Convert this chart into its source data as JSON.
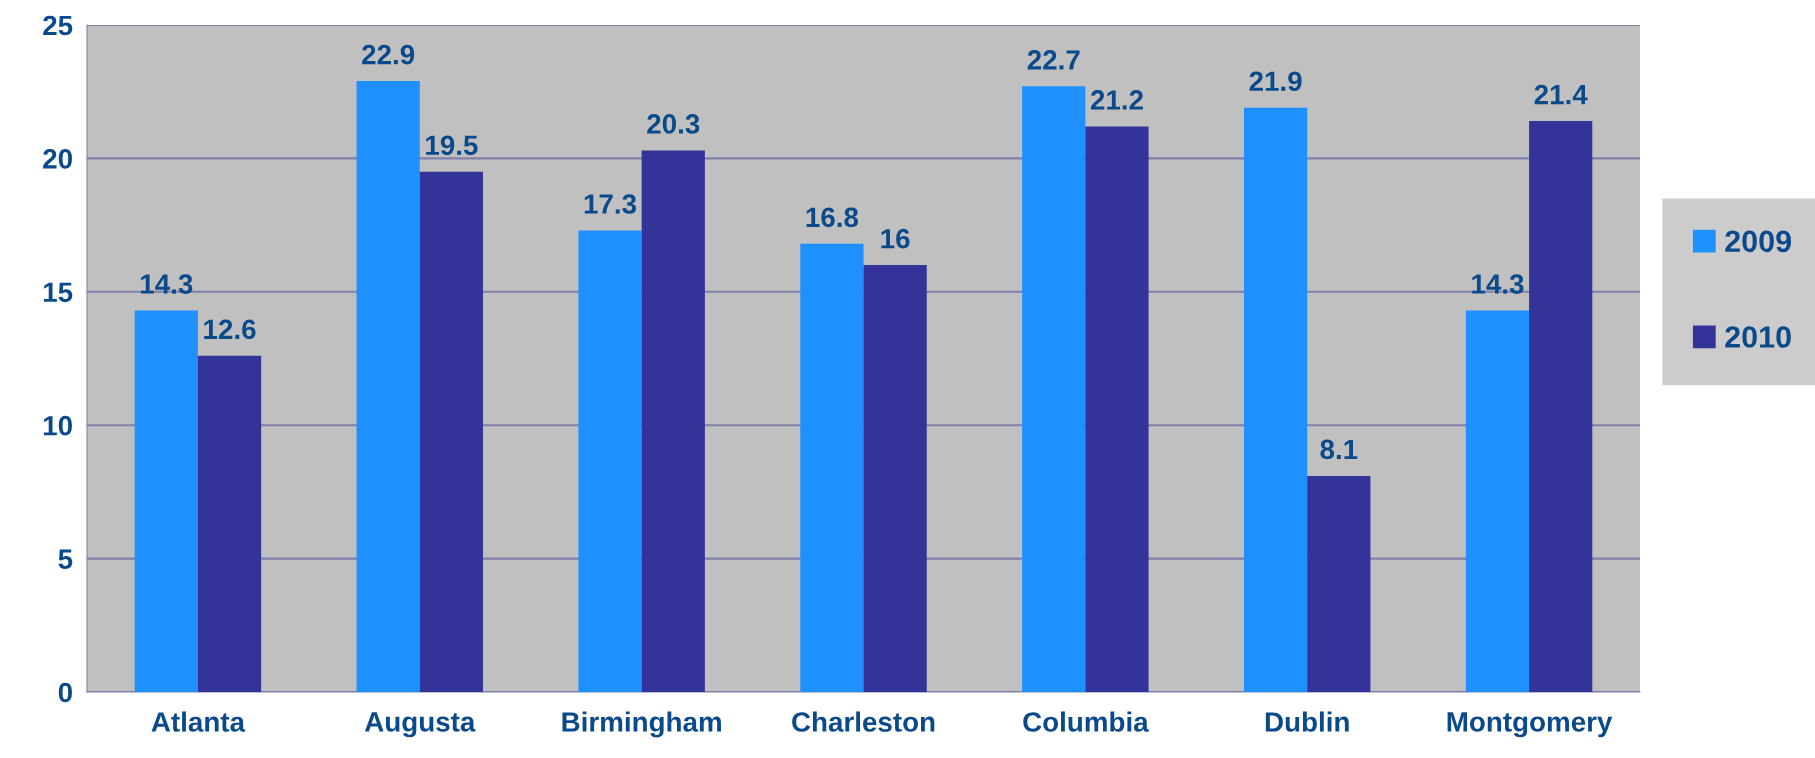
{
  "chart_data": {
    "type": "bar",
    "categories": [
      "Atlanta",
      "Augusta",
      "Birmingham",
      "Charleston",
      "Columbia",
      "Dublin",
      "Montgomery"
    ],
    "series": [
      {
        "name": "2009",
        "color": "#1e90ff",
        "values": [
          14.3,
          22.9,
          17.3,
          16.8,
          22.7,
          21.9,
          14.3
        ]
      },
      {
        "name": "2010",
        "color": "#333399",
        "values": [
          12.6,
          19.5,
          20.3,
          16,
          21.2,
          8.1,
          21.4
        ]
      }
    ],
    "ylim": [
      0,
      25
    ],
    "yticks": [
      0,
      5,
      10,
      15,
      20,
      25
    ],
    "grid": "y",
    "legend": "right",
    "data_labels": true
  }
}
